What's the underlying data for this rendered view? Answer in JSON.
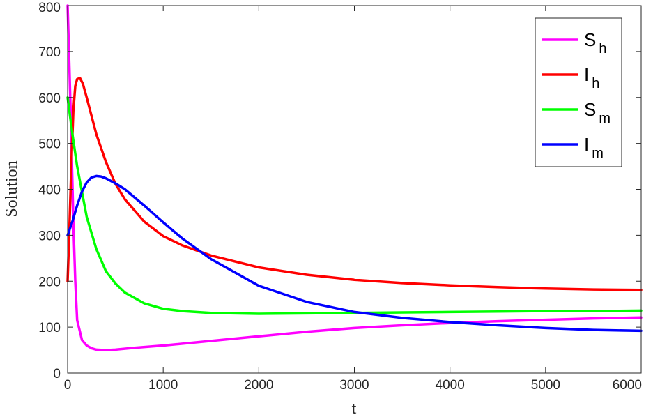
{
  "chart_data": {
    "type": "line",
    "xlabel": "t",
    "ylabel": "Solution",
    "xlim": [
      0,
      6000
    ],
    "ylim": [
      0,
      800
    ],
    "xticks": [
      0,
      1000,
      2000,
      3000,
      4000,
      5000,
      6000
    ],
    "yticks": [
      0,
      100,
      200,
      300,
      400,
      500,
      600,
      700,
      800
    ],
    "grid": false,
    "legend_position": "top-right",
    "series": [
      {
        "name": "S_h",
        "label_main": "S",
        "label_sub": "h",
        "color": "#ff00ff",
        "x": [
          0,
          20,
          40,
          60,
          80,
          100,
          150,
          200,
          250,
          300,
          400,
          500,
          700,
          1000,
          1500,
          2000,
          2500,
          3000,
          3500,
          4000,
          4500,
          5000,
          5500,
          6000
        ],
        "y": [
          800,
          660,
          500,
          330,
          200,
          115,
          72,
          60,
          54,
          51,
          50,
          51,
          55,
          60,
          70,
          80,
          90,
          98,
          104,
          109,
          113,
          116,
          119,
          121
        ]
      },
      {
        "name": "I_h",
        "label_main": "I",
        "label_sub": "h",
        "color": "#ff0000",
        "x": [
          0,
          20,
          40,
          60,
          80,
          100,
          130,
          160,
          200,
          300,
          400,
          500,
          600,
          800,
          1000,
          1200,
          1500,
          2000,
          2500,
          3000,
          3500,
          4000,
          4500,
          5000,
          5500,
          6000
        ],
        "y": [
          200,
          320,
          460,
          570,
          625,
          640,
          642,
          630,
          600,
          520,
          460,
          412,
          378,
          330,
          298,
          278,
          256,
          230,
          214,
          203,
          196,
          191,
          187,
          184,
          182,
          181
        ]
      },
      {
        "name": "S_m",
        "label_main": "S",
        "label_sub": "m",
        "color": "#00ff00",
        "x": [
          0,
          50,
          100,
          200,
          300,
          400,
          500,
          600,
          800,
          1000,
          1200,
          1500,
          2000,
          2500,
          3000,
          3500,
          4000,
          4500,
          5000,
          5500,
          6000
        ],
        "y": [
          600,
          520,
          450,
          340,
          270,
          222,
          195,
          175,
          152,
          140,
          135,
          131,
          129,
          130,
          131,
          132,
          133,
          134,
          135,
          135,
          136
        ]
      },
      {
        "name": "I_m",
        "label_main": "I",
        "label_sub": "m",
        "color": "#0000ff",
        "x": [
          0,
          50,
          100,
          150,
          200,
          250,
          300,
          350,
          400,
          500,
          600,
          800,
          1000,
          1200,
          1500,
          2000,
          2500,
          3000,
          3500,
          4000,
          4500,
          5000,
          5500,
          6000
        ],
        "y": [
          300,
          330,
          365,
          395,
          415,
          426,
          429,
          428,
          424,
          413,
          400,
          365,
          328,
          293,
          248,
          190,
          155,
          133,
          120,
          111,
          104,
          98,
          94,
          92
        ]
      }
    ]
  }
}
